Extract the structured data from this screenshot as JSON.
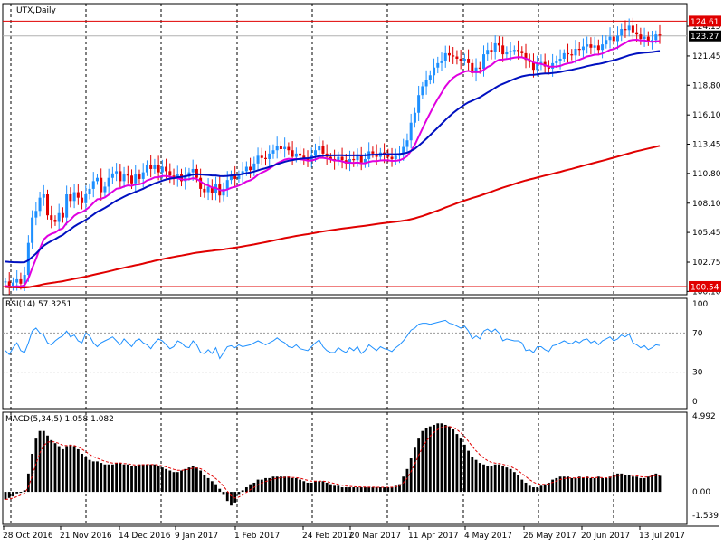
{
  "chart_data": [
    {
      "type": "candlestick",
      "title": "UTX,Daily",
      "price_range": [
        99.8,
        126.2
      ],
      "y_ticks": [
        "124.15",
        "121.45",
        "118.80",
        "116.10",
        "113.45",
        "110.80",
        "108.10",
        "105.45",
        "102.75",
        "100.10"
      ],
      "tags": {
        "high": "124.61",
        "current": "123.27",
        "low": "100.54"
      },
      "date_labels": [
        "28 Oct 2016",
        "21 Nov 2016",
        "14 Dec 2016",
        "9 Jan 2017",
        "1 Feb 2017",
        "24 Feb 2017",
        "20 Mar 2017",
        "11 Apr 2017",
        "4 May 2017",
        "26 May 2017",
        "20 Jun 2017",
        "13 Jul 2017"
      ],
      "closes_approx": [
        101.0,
        100.6,
        100.9,
        101.2,
        100.8,
        101.6,
        104.5,
        106.8,
        107.4,
        108.6,
        108.9,
        107.0,
        106.6,
        106.4,
        107.2,
        106.8,
        108.9,
        108.3,
        109.1,
        108.6,
        108.1,
        108.9,
        109.4,
        110.1,
        110.4,
        109.1,
        109.6,
        110.4,
        110.8,
        111.0,
        110.1,
        110.7,
        110.6,
        109.9,
        110.7,
        110.3,
        110.9,
        111.6,
        111.2,
        111.6,
        110.9,
        111.4,
        111.0,
        110.6,
        110.3,
        110.7,
        110.1,
        110.5,
        110.9,
        111.2,
        110.4,
        109.4,
        109.1,
        109.6,
        109.0,
        109.8,
        108.8,
        109.4,
        110.2,
        110.6,
        110.3,
        110.7,
        111.0,
        111.4,
        111.1,
        111.7,
        112.4,
        112.2,
        112.1,
        112.6,
        112.9,
        113.3,
        113.0,
        113.2,
        112.9,
        112.3,
        112.6,
        112.4,
        112.2,
        112.0,
        112.4,
        112.9,
        113.3,
        112.6,
        112.3,
        112.1,
        111.9,
        112.3,
        112.0,
        111.7,
        112.1,
        112.0,
        112.4,
        111.8,
        112.1,
        112.8,
        112.6,
        112.3,
        112.7,
        112.5,
        112.3,
        112.1,
        112.4,
        112.6,
        113.2,
        113.8,
        115.4,
        116.3,
        117.9,
        118.7,
        119.3,
        119.7,
        120.4,
        120.8,
        121.0,
        121.7,
        121.5,
        121.4,
        121.2,
        121.0,
        121.2,
        120.8,
        119.9,
        120.4,
        120.3,
        121.6,
        122.0,
        121.8,
        122.6,
        122.4,
        121.6,
        121.8,
        121.9,
        122.0,
        121.9,
        121.7,
        121.1,
        120.9,
        120.2,
        120.8,
        120.9,
        120.5,
        120.3,
        120.8,
        121.0,
        121.2,
        121.7,
        121.6,
        121.5,
        122.1,
        122.0,
        122.3,
        122.5,
        122.2,
        122.4,
        122.0,
        122.5,
        122.9,
        123.2,
        122.8,
        123.3,
        123.9,
        123.8,
        124.2,
        123.6,
        123.4,
        123.0,
        123.2,
        122.8,
        122.9,
        123.4,
        123.3
      ],
      "moving_averages": [
        {
          "color": "#e000e0",
          "start": 100.6,
          "end": 122.8
        },
        {
          "color": "#0010c0",
          "start": 102.8,
          "end": 121.9
        },
        {
          "color": "#e00000",
          "start": 100.5,
          "end": 113.3
        }
      ]
    },
    {
      "type": "line",
      "title": "RSI(14) 57.3251",
      "ylim": [
        0,
        100
      ],
      "y_ticks": [
        "100",
        "70",
        "30",
        "0"
      ],
      "levels": [
        70,
        30
      ],
      "values_approx": [
        52,
        48,
        55,
        60,
        52,
        50,
        60,
        72,
        75,
        70,
        68,
        60,
        58,
        62,
        65,
        67,
        72,
        66,
        68,
        62,
        60,
        70,
        67,
        60,
        56,
        60,
        62,
        64,
        66,
        62,
        58,
        64,
        60,
        56,
        62,
        64,
        60,
        58,
        54,
        60,
        64,
        62,
        58,
        54,
        56,
        62,
        60,
        56,
        55,
        62,
        58,
        50,
        49,
        53,
        49,
        55,
        44,
        50,
        56,
        57,
        55,
        58,
        56,
        57,
        58,
        60,
        62,
        60,
        58,
        60,
        62,
        65,
        62,
        60,
        56,
        55,
        58,
        54,
        53,
        52,
        56,
        60,
        63,
        56,
        52,
        50,
        50,
        55,
        52,
        50,
        55,
        52,
        56,
        49,
        52,
        58,
        55,
        52,
        56,
        54,
        53,
        51,
        55,
        58,
        62,
        67,
        73,
        75,
        79,
        80,
        80,
        79,
        80,
        81,
        82,
        83,
        80,
        79,
        77,
        75,
        77,
        72,
        64,
        67,
        64,
        72,
        74,
        71,
        74,
        70,
        62,
        64,
        63,
        62,
        62,
        60,
        52,
        53,
        50,
        56,
        56,
        53,
        51,
        57,
        58,
        60,
        62,
        60,
        59,
        62,
        60,
        63,
        64,
        60,
        62,
        58,
        62,
        64,
        66,
        62,
        64,
        68,
        66,
        69,
        60,
        58,
        55,
        57,
        53,
        55,
        58,
        57.3
      ]
    },
    {
      "type": "bar",
      "title": "MACD(5,34,5) 1.058 1.082",
      "ylim": [
        -1.539,
        4.992
      ],
      "y_ticks": [
        "4.992",
        "0.00",
        "-1.539"
      ],
      "histogram_approx": [
        -0.5,
        -0.4,
        -0.3,
        -0.1,
        0.0,
        0.1,
        1.2,
        2.5,
        3.5,
        4.0,
        4.0,
        3.7,
        3.4,
        3.2,
        3.0,
        2.8,
        3.0,
        3.1,
        3.0,
        2.8,
        2.5,
        2.3,
        2.1,
        2.0,
        2.0,
        1.9,
        1.8,
        1.8,
        1.8,
        1.9,
        1.9,
        1.8,
        1.8,
        1.7,
        1.7,
        1.8,
        1.8,
        1.8,
        1.8,
        1.8,
        1.7,
        1.6,
        1.5,
        1.4,
        1.3,
        1.3,
        1.4,
        1.5,
        1.6,
        1.7,
        1.6,
        1.4,
        1.1,
        0.9,
        0.7,
        0.5,
        0.2,
        -0.2,
        -0.6,
        -0.9,
        -0.7,
        -0.2,
        0.1,
        0.3,
        0.5,
        0.6,
        0.8,
        0.8,
        0.9,
        0.9,
        1.0,
        1.0,
        1.0,
        1.0,
        1.0,
        0.9,
        0.9,
        0.8,
        0.7,
        0.6,
        0.6,
        0.7,
        0.7,
        0.7,
        0.6,
        0.5,
        0.4,
        0.4,
        0.3,
        0.3,
        0.3,
        0.3,
        0.3,
        0.3,
        0.3,
        0.3,
        0.3,
        0.3,
        0.3,
        0.3,
        0.3,
        0.3,
        0.4,
        0.5,
        1.0,
        1.5,
        2.2,
        2.9,
        3.5,
        4.0,
        4.2,
        4.3,
        4.4,
        4.5,
        4.5,
        4.4,
        4.3,
        4.1,
        3.8,
        3.5,
        3.1,
        2.7,
        2.3,
        2.1,
        1.9,
        1.8,
        1.7,
        1.7,
        1.8,
        1.8,
        1.7,
        1.6,
        1.5,
        1.3,
        1.1,
        0.8,
        0.6,
        0.4,
        0.3,
        0.3,
        0.4,
        0.5,
        0.6,
        0.8,
        0.9,
        1.0,
        1.0,
        1.0,
        0.9,
        0.9,
        1.0,
        0.9,
        1.0,
        0.9,
        0.9,
        1.0,
        0.9,
        0.9,
        1.0,
        1.1,
        1.2,
        1.2,
        1.1,
        1.1,
        1.0,
        1.0,
        0.9,
        0.9,
        1.0,
        1.1,
        1.2,
        1.05
      ],
      "signal_color": "#e00000"
    }
  ]
}
